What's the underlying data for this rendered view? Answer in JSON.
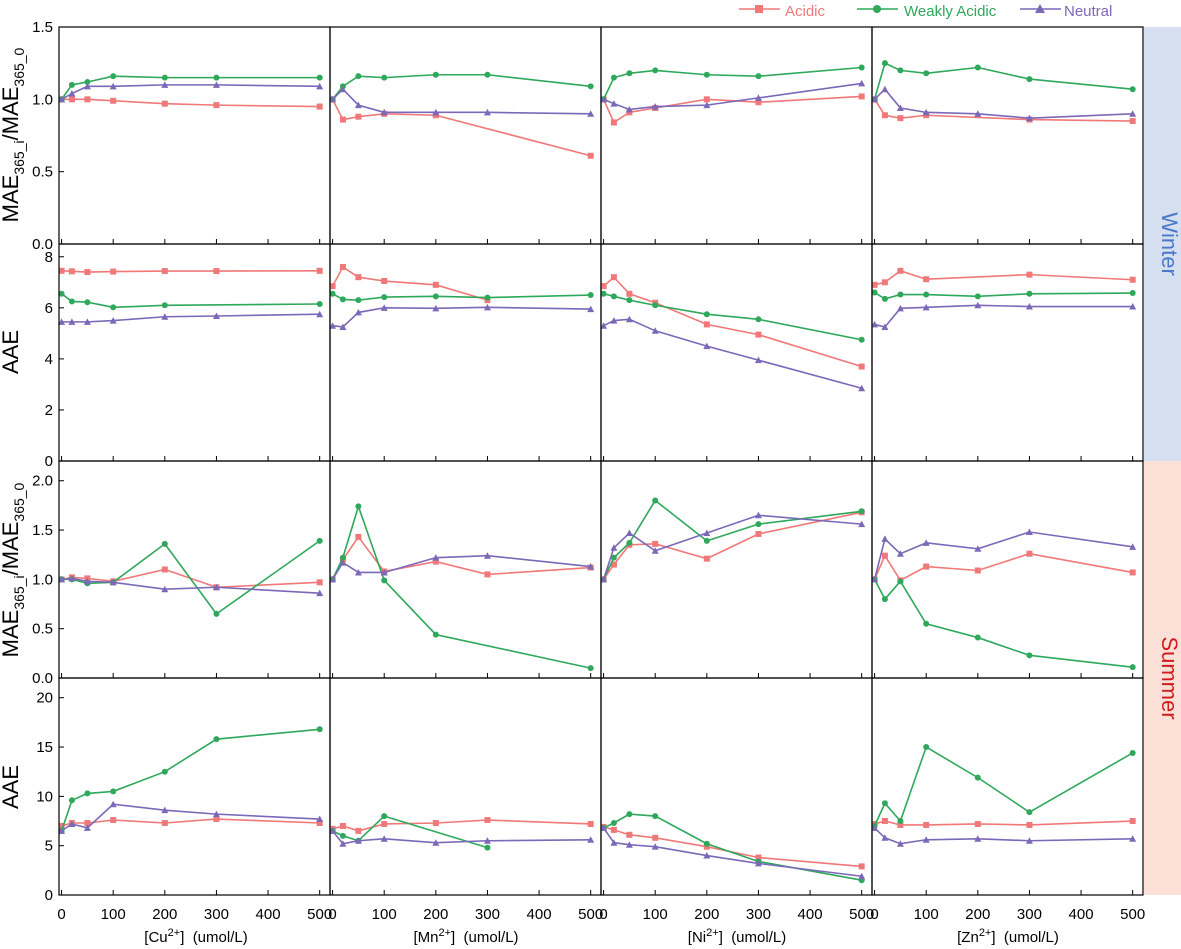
{
  "legend": [
    {
      "label": "Acidic",
      "color": "#f07878",
      "marker": "square"
    },
    {
      "label": "Weakly Acidic",
      "color": "#2ea85a",
      "marker": "circle"
    },
    {
      "label": "Neutral",
      "color": "#7b68b8",
      "marker": "triangle"
    }
  ],
  "season_labels": [
    {
      "label": "Winter",
      "text_color": "#4a78c8",
      "band_color": "#d6dff0"
    },
    {
      "label": "Summer",
      "text_color": "#d01c1c",
      "band_color": "#fbe0d8"
    }
  ],
  "x_axis": {
    "ticks": [
      "0",
      "100",
      "200",
      "300",
      "400",
      "500"
    ],
    "labels": [
      {
        "pre": "[Cu",
        "sup": "2+",
        "post": "]  (umol/L)"
      },
      {
        "pre": "[Mn",
        "sup": "2+",
        "post": "]  (umol/L)"
      },
      {
        "pre": "[Ni",
        "sup": "2+",
        "post": "]  (umol/L)"
      },
      {
        "pre": "[Zn",
        "sup": "2+",
        "post": "]  (umol/L)"
      }
    ]
  },
  "y_axis_labels": [
    {
      "kind": "ratio",
      "main": "MAE",
      "sub1": "365_i",
      "mid": "/MAE",
      "sub2": "365_0"
    },
    {
      "kind": "plain",
      "main": "AAE"
    },
    {
      "kind": "ratio",
      "main": "MAE",
      "sub1": "365_i",
      "mid": "/MAE",
      "sub2": "365_0"
    },
    {
      "kind": "plain",
      "main": "AAE"
    }
  ],
  "chart_data": {
    "type": "line",
    "x": [
      0,
      20,
      50,
      100,
      200,
      300,
      500
    ],
    "xlim": [
      -5,
      520
    ],
    "series_names": [
      "Acidic",
      "Weakly Acidic",
      "Neutral"
    ],
    "rows": [
      {
        "ylabel": "MAE365_i/MAE365_0",
        "season": "Winter",
        "ylim": [
          0,
          1.5
        ],
        "yticks": [
          "0.0",
          "0.5",
          "1.0",
          "1.5"
        ],
        "panels": [
          {
            "metal": "Cu",
            "series": [
              [
                1.0,
                1.0,
                1.0,
                0.99,
                0.97,
                0.96,
                0.95
              ],
              [
                1.0,
                1.1,
                1.12,
                1.16,
                1.15,
                1.15,
                1.15
              ],
              [
                1.0,
                1.04,
                1.09,
                1.09,
                1.1,
                1.1,
                1.09
              ]
            ]
          },
          {
            "metal": "Mn",
            "series": [
              [
                1.0,
                0.86,
                0.88,
                0.9,
                0.89,
                null,
                0.61
              ],
              [
                1.0,
                1.09,
                1.16,
                1.15,
                1.17,
                1.17,
                1.09
              ],
              [
                1.0,
                1.07,
                0.96,
                0.91,
                0.91,
                0.91,
                0.9
              ]
            ]
          },
          {
            "metal": "Ni",
            "series": [
              [
                1.0,
                0.84,
                0.91,
                0.94,
                1.0,
                0.98,
                1.02
              ],
              [
                1.0,
                1.15,
                1.18,
                1.2,
                1.17,
                1.16,
                1.22
              ],
              [
                1.0,
                0.97,
                0.93,
                0.95,
                0.96,
                1.01,
                1.11
              ]
            ]
          },
          {
            "metal": "Zn",
            "series": [
              [
                1.0,
                0.89,
                0.87,
                0.89,
                null,
                0.86,
                0.85
              ],
              [
                1.0,
                1.25,
                1.2,
                1.18,
                1.22,
                1.14,
                1.07
              ],
              [
                1.0,
                1.07,
                0.94,
                0.91,
                0.9,
                0.87,
                0.9
              ]
            ]
          }
        ]
      },
      {
        "ylabel": "AAE",
        "season": "Winter",
        "ylim": [
          0,
          8.5
        ],
        "yticks": [
          "0",
          "2",
          "4",
          "6",
          "8"
        ],
        "panels": [
          {
            "metal": "Cu",
            "series": [
              [
                7.45,
                7.43,
                7.4,
                7.42,
                7.44,
                7.44,
                7.45
              ],
              [
                6.55,
                6.25,
                6.22,
                6.02,
                6.1,
                null,
                6.15
              ],
              [
                5.45,
                5.45,
                5.45,
                5.5,
                5.65,
                5.68,
                5.75
              ]
            ]
          },
          {
            "metal": "Mn",
            "series": [
              [
                6.85,
                7.6,
                7.2,
                7.05,
                6.9,
                6.3,
                null
              ],
              [
                6.55,
                6.33,
                6.3,
                6.42,
                6.45,
                6.4,
                6.5
              ],
              [
                5.3,
                5.25,
                5.82,
                6.0,
                5.98,
                6.02,
                5.95
              ]
            ]
          },
          {
            "metal": "Ni",
            "series": [
              [
                6.85,
                7.2,
                6.55,
                6.2,
                5.35,
                4.95,
                3.7
              ],
              [
                6.55,
                6.45,
                6.3,
                6.1,
                5.75,
                5.55,
                4.75
              ],
              [
                5.3,
                5.5,
                5.55,
                5.1,
                4.5,
                3.95,
                2.85
              ]
            ]
          },
          {
            "metal": "Zn",
            "series": [
              [
                6.9,
                7.0,
                7.45,
                7.12,
                null,
                7.3,
                7.1
              ],
              [
                6.6,
                6.35,
                6.52,
                6.52,
                6.45,
                6.55,
                6.58
              ],
              [
                5.35,
                5.25,
                5.98,
                6.02,
                6.1,
                6.05,
                6.05
              ]
            ]
          }
        ]
      },
      {
        "ylabel": "MAE365_i/MAE365_0",
        "season": "Summer",
        "ylim": [
          0,
          2.2
        ],
        "yticks": [
          "0.0",
          "0.5",
          "1.0",
          "1.5",
          "2.0"
        ],
        "panels": [
          {
            "metal": "Cu",
            "series": [
              [
                1.0,
                1.02,
                1.01,
                0.98,
                1.1,
                0.92,
                0.97
              ],
              [
                1.0,
                1.0,
                0.96,
                0.97,
                1.36,
                0.65,
                1.39
              ],
              [
                1.0,
                1.01,
                0.98,
                0.97,
                0.9,
                0.92,
                0.86
              ]
            ]
          },
          {
            "metal": "Mn",
            "series": [
              [
                1.0,
                1.2,
                1.43,
                1.08,
                1.18,
                1.05,
                1.12
              ],
              [
                1.0,
                1.22,
                1.74,
                0.99,
                0.44,
                null,
                0.1
              ],
              [
                1.0,
                1.17,
                1.07,
                1.07,
                1.22,
                1.24,
                1.13
              ]
            ]
          },
          {
            "metal": "Ni",
            "series": [
              [
                1.0,
                1.15,
                1.35,
                1.36,
                1.21,
                1.46,
                1.68
              ],
              [
                1.0,
                1.22,
                1.37,
                1.8,
                1.39,
                1.56,
                1.69
              ],
              [
                1.0,
                1.32,
                1.47,
                1.29,
                1.47,
                1.65,
                1.56
              ]
            ]
          },
          {
            "metal": "Zn",
            "series": [
              [
                1.0,
                1.24,
                0.99,
                1.13,
                1.09,
                1.26,
                1.07
              ],
              [
                1.0,
                0.8,
                0.98,
                0.55,
                0.41,
                0.23,
                0.11
              ],
              [
                1.0,
                1.41,
                1.26,
                1.37,
                1.31,
                1.48,
                1.33
              ]
            ]
          }
        ]
      },
      {
        "ylabel": "AAE",
        "season": "Summer",
        "ylim": [
          0,
          22
        ],
        "yticks": [
          "0",
          "5",
          "10",
          "15",
          "20"
        ],
        "panels": [
          {
            "metal": "Cu",
            "series": [
              [
                7.0,
                7.3,
                7.3,
                7.6,
                7.3,
                7.7,
                7.3
              ],
              [
                6.5,
                9.6,
                10.3,
                10.5,
                12.5,
                15.8,
                16.8
              ],
              [
                6.5,
                7.2,
                6.8,
                9.2,
                8.6,
                8.2,
                7.7
              ]
            ]
          },
          {
            "metal": "Mn",
            "series": [
              [
                6.7,
                7.0,
                6.5,
                7.2,
                7.3,
                7.6,
                7.2
              ],
              [
                6.5,
                6.0,
                5.5,
                8.0,
                null,
                4.8,
                null
              ],
              [
                6.5,
                5.2,
                5.5,
                5.7,
                5.3,
                5.5,
                5.6
              ]
            ]
          },
          {
            "metal": "Ni",
            "series": [
              [
                6.9,
                6.6,
                6.1,
                5.8,
                4.9,
                3.8,
                2.9
              ],
              [
                6.8,
                7.3,
                8.2,
                8.0,
                5.2,
                3.4,
                1.5
              ],
              [
                6.8,
                5.3,
                5.1,
                4.9,
                4.0,
                3.2,
                1.9
              ]
            ]
          },
          {
            "metal": "Zn",
            "series": [
              [
                7.2,
                7.5,
                7.1,
                7.1,
                7.2,
                7.1,
                7.5
              ],
              [
                7.0,
                9.3,
                7.5,
                15.0,
                11.9,
                8.4,
                14.4
              ],
              [
                6.8,
                5.8,
                5.2,
                5.6,
                5.7,
                5.5,
                5.7
              ]
            ]
          }
        ]
      }
    ]
  }
}
